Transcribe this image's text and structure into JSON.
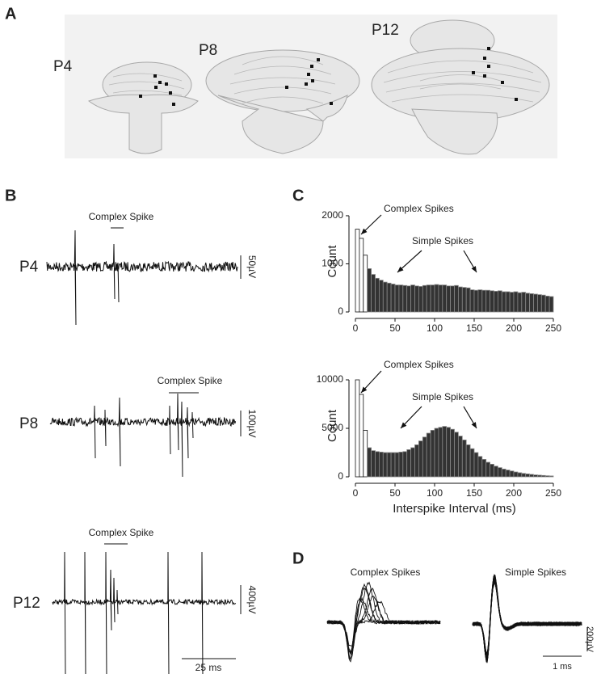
{
  "panels": {
    "A": {
      "label": "A",
      "sections": [
        "P4",
        "P8",
        "P12"
      ]
    },
    "B": {
      "label": "B",
      "traces": [
        {
          "age": "P4",
          "annotation": "Complex Spike",
          "scale": "50µV"
        },
        {
          "age": "P8",
          "annotation": "Complex Spike",
          "scale": "100µV"
        },
        {
          "age": "P12",
          "annotation": "Complex Spike",
          "scale": "400µV"
        }
      ],
      "time_scale": "25 ms"
    },
    "C": {
      "label": "C"
    },
    "D": {
      "label": "D",
      "titles": [
        "Complex Spikes",
        "Simple Spikes"
      ],
      "voltage_scale": "200µV",
      "time_scale": "1 ms"
    }
  },
  "chart_data": [
    {
      "type": "histogram",
      "ylabel": "Count",
      "annotations": [
        "Complex Spikes",
        "Simple Spikes"
      ],
      "bins": [
        0,
        5,
        10,
        15,
        20,
        25,
        30,
        35,
        40,
        45,
        50,
        55,
        60,
        65,
        70,
        75,
        80,
        85,
        90,
        95,
        100,
        105,
        110,
        115,
        120,
        125,
        130,
        135,
        140,
        145,
        150,
        155,
        160,
        165,
        170,
        175,
        180,
        185,
        190,
        195,
        200,
        205,
        210,
        215,
        220,
        225,
        230,
        235,
        240,
        245,
        250
      ],
      "values": [
        1720,
        1530,
        1180,
        900,
        780,
        700,
        660,
        620,
        600,
        580,
        560,
        560,
        550,
        540,
        560,
        540,
        530,
        550,
        560,
        560,
        570,
        560,
        560,
        540,
        540,
        550,
        520,
        510,
        500,
        460,
        450,
        460,
        450,
        450,
        440,
        430,
        440,
        420,
        420,
        410,
        420,
        400,
        410,
        390,
        380,
        370,
        360,
        350,
        330,
        320
      ],
      "colors": [
        "#ffffff",
        "#ffffff",
        "#ffffff",
        "#333333",
        "#333333",
        "#333333",
        "#333333",
        "#333333",
        "#333333",
        "#333333",
        "#333333",
        "#333333",
        "#333333",
        "#333333",
        "#333333",
        "#333333",
        "#333333",
        "#333333",
        "#333333",
        "#333333",
        "#333333",
        "#333333",
        "#333333",
        "#333333",
        "#333333",
        "#333333",
        "#333333",
        "#333333",
        "#333333",
        "#333333",
        "#333333",
        "#333333",
        "#333333",
        "#333333",
        "#333333",
        "#333333",
        "#333333",
        "#333333",
        "#333333",
        "#333333",
        "#333333",
        "#333333",
        "#333333",
        "#333333",
        "#333333",
        "#333333",
        "#333333",
        "#333333",
        "#333333",
        "#333333"
      ],
      "xlim": [
        0,
        250
      ],
      "xticks": [
        0,
        50,
        100,
        150,
        200,
        250
      ],
      "ylim": [
        0,
        2100
      ],
      "yticks": [
        0,
        1000,
        2000
      ]
    },
    {
      "type": "histogram",
      "ylabel": "Count",
      "xlabel": "Interspike Interval (ms)",
      "annotations": [
        "Complex Spikes",
        "Simple Spikes"
      ],
      "bins": [
        0,
        5,
        10,
        15,
        20,
        25,
        30,
        35,
        40,
        45,
        50,
        55,
        60,
        65,
        70,
        75,
        80,
        85,
        90,
        95,
        100,
        105,
        110,
        115,
        120,
        125,
        130,
        135,
        140,
        145,
        150,
        155,
        160,
        165,
        170,
        175,
        180,
        185,
        190,
        195,
        200,
        205,
        210,
        215,
        220,
        225,
        230,
        235,
        240,
        245,
        250
      ],
      "values": [
        10000,
        8500,
        4800,
        3000,
        2700,
        2600,
        2550,
        2500,
        2500,
        2500,
        2500,
        2550,
        2600,
        2800,
        3000,
        3300,
        3700,
        4100,
        4500,
        4800,
        5000,
        5100,
        5200,
        5100,
        4900,
        4600,
        4200,
        3800,
        3300,
        2900,
        2500,
        2100,
        1800,
        1500,
        1300,
        1100,
        950,
        800,
        700,
        600,
        500,
        420,
        350,
        300,
        250,
        200,
        170,
        140,
        110,
        90
      ],
      "colors": [
        "#ffffff",
        "#ffffff",
        "#ffffff",
        "#333333",
        "#333333",
        "#333333",
        "#333333",
        "#333333",
        "#333333",
        "#333333",
        "#333333",
        "#333333",
        "#333333",
        "#333333",
        "#333333",
        "#333333",
        "#333333",
        "#333333",
        "#333333",
        "#333333",
        "#333333",
        "#333333",
        "#333333",
        "#333333",
        "#333333",
        "#333333",
        "#333333",
        "#333333",
        "#333333",
        "#333333",
        "#333333",
        "#333333",
        "#333333",
        "#333333",
        "#333333",
        "#333333",
        "#333333",
        "#333333",
        "#333333",
        "#333333",
        "#333333",
        "#333333",
        "#333333",
        "#333333",
        "#333333",
        "#333333",
        "#333333",
        "#333333",
        "#333333",
        "#333333"
      ],
      "xlim": [
        0,
        250
      ],
      "xticks": [
        0,
        50,
        100,
        150,
        200,
        250
      ],
      "ylim": [
        0,
        10500
      ],
      "yticks": [
        0,
        5000,
        10000
      ]
    }
  ]
}
